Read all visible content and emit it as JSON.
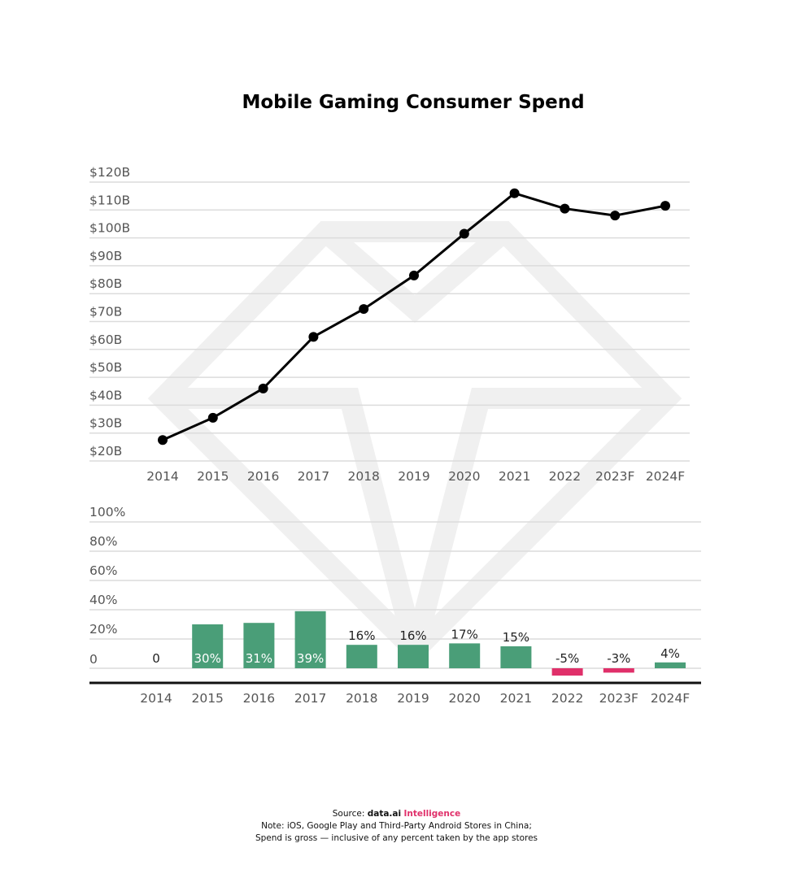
{
  "title": "Mobile Gaming Consumer Spend",
  "footer": {
    "source_prefix": "Source: ",
    "source_brand": "data.ai",
    "source_product": "Intelligence",
    "note_line1": "Note: iOS, Google Play and Third-Party Android Stores in China;",
    "note_line2": "Spend is gross — inclusive of any percent taken by the app stores"
  },
  "colors": {
    "line": "#000000",
    "positive": "#4a9e78",
    "negative": "#e0306a",
    "brand_accent": "#e0306a"
  },
  "chart_data": [
    {
      "type": "line",
      "title": "Mobile Gaming Consumer Spend",
      "categories": [
        "2014",
        "2015",
        "2016",
        "2017",
        "2018",
        "2019",
        "2020",
        "2021",
        "2022",
        "2023F",
        "2024F"
      ],
      "values": [
        27.5,
        35.5,
        46,
        64.5,
        74.5,
        86.5,
        101.5,
        116,
        110.5,
        108,
        111.5
      ],
      "unit": "$B",
      "yticks": [
        "$20B",
        "$30B",
        "$40B",
        "$50B",
        "$60B",
        "$70B",
        "$80B",
        "$90B",
        "$100B",
        "$110B",
        "$120B"
      ],
      "ylim": [
        20,
        120
      ],
      "grid": true,
      "markers": true
    },
    {
      "type": "bar",
      "categories": [
        "2014",
        "2015",
        "2016",
        "2017",
        "2018",
        "2019",
        "2020",
        "2021",
        "2022",
        "2023F",
        "2024F"
      ],
      "values": [
        0,
        30,
        31,
        39,
        16,
        16,
        17,
        15,
        -5,
        -3,
        4
      ],
      "data_labels": [
        "0",
        "30%",
        "31%",
        "39%",
        "16%",
        "16%",
        "17%",
        "15%",
        "-5%",
        "-3%",
        "4%"
      ],
      "yticks": [
        "0",
        "20%",
        "40%",
        "60%",
        "80%",
        "100%"
      ],
      "ylim": [
        0,
        100
      ],
      "grid": true
    }
  ]
}
